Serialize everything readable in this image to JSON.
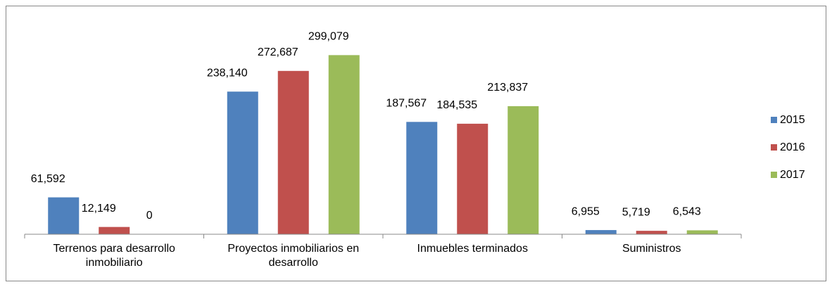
{
  "chart_data": {
    "type": "bar",
    "categories": [
      "Terrenos para desarrollo inmobiliario",
      "Proyectos inmobiliarios en desarrollo",
      "Inmuebles terminados",
      "Suministros"
    ],
    "series": [
      {
        "name": "2015",
        "color": "#4f81bd",
        "values": [
          61592,
          238140,
          187567,
          6955
        ],
        "value_labels": [
          "61,592",
          "238,140",
          "187,567",
          "6,955"
        ]
      },
      {
        "name": "2016",
        "color": "#c0504d",
        "values": [
          12149,
          272687,
          184535,
          5719
        ],
        "value_labels": [
          "12,149",
          "272,687",
          "184,535",
          "5,719"
        ]
      },
      {
        "name": "2017",
        "color": "#9bbb59",
        "values": [
          0,
          299079,
          213837,
          6543
        ],
        "value_labels": [
          "0",
          "299,079",
          "213,837",
          "6,543"
        ]
      }
    ],
    "ylim": [
      0,
      350000
    ],
    "grid": false,
    "legend": "right"
  }
}
